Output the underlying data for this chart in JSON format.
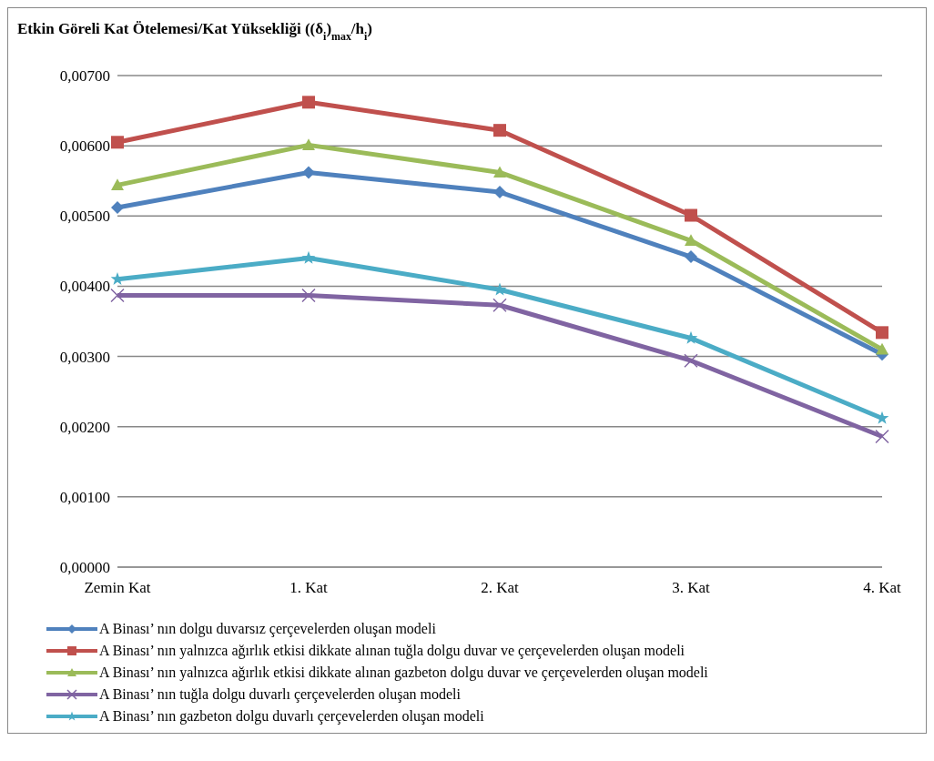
{
  "chart_data": {
    "type": "line",
    "title": "Etkin Göreli Kat Ötelemesi/Kat Yüksekliği ((δ$_{i}$)$_{max}$/h$_{i}$)",
    "categories": [
      "Zemin Kat",
      "1. Kat",
      "2. Kat",
      "3. Kat",
      "4. Kat"
    ],
    "series": [
      {
        "name": "A Binası’ nın dolgu duvarsız çerçevelerden oluşan modeli",
        "color": "#4f81bd",
        "marker": "diamond",
        "values": [
          0.00512,
          0.00562,
          0.00534,
          0.00442,
          0.00303
        ]
      },
      {
        "name": "A Binası’ nın yalnızca ağırlık etkisi dikkate alınan tuğla dolgu duvar ve çerçevelerden oluşan modeli",
        "color": "#c0504d",
        "marker": "square",
        "values": [
          0.00605,
          0.00662,
          0.00622,
          0.00501,
          0.00334
        ]
      },
      {
        "name": "A Binası’ nın  yalnızca ağırlık etkisi dikkate alınan gazbeton dolgu duvar ve çerçevelerden oluşan modeli",
        "color": "#9bbb59",
        "marker": "triangle",
        "values": [
          0.00544,
          0.00601,
          0.00562,
          0.00465,
          0.0031
        ]
      },
      {
        "name": "A Binası’ nın tuğla dolgu duvarlı çerçevelerden oluşan modeli",
        "color": "#8064a2",
        "marker": "cross",
        "values": [
          0.00387,
          0.00387,
          0.00373,
          0.00294,
          0.00186
        ]
      },
      {
        "name": "A Binası’ nın gazbeton dolgu duvarlı çerçevelerden oluşan modeli",
        "color": "#4bacc6",
        "marker": "star",
        "values": [
          0.0041,
          0.0044,
          0.00395,
          0.00326,
          0.00212
        ]
      }
    ],
    "ylim": [
      0,
      0.007
    ],
    "yticks": [
      {
        "value": 0,
        "label": "0,00000"
      },
      {
        "value": 0.001,
        "label": "0,00100"
      },
      {
        "value": 0.002,
        "label": "0,00200"
      },
      {
        "value": 0.003,
        "label": "0,00300"
      },
      {
        "value": 0.004,
        "label": "0,00400"
      },
      {
        "value": 0.005,
        "label": "0,00500"
      },
      {
        "value": 0.006,
        "label": "0,00600"
      },
      {
        "value": 0.007,
        "label": "0,00700"
      }
    ],
    "grid": "y",
    "legend": "bottom",
    "line_style": "solid"
  }
}
